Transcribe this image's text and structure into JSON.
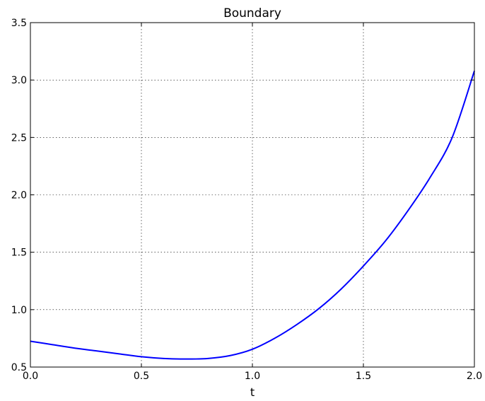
{
  "chart_data": {
    "type": "line",
    "title": "Boundary",
    "xlabel": "t",
    "ylabel": "",
    "xlim": [
      0.0,
      2.0
    ],
    "ylim": [
      0.5,
      3.5
    ],
    "xticks": [
      0.0,
      0.5,
      1.0,
      1.5,
      2.0
    ],
    "xtick_labels": [
      "0.0",
      "0.5",
      "1.0",
      "1.5",
      "2.0"
    ],
    "yticks": [
      0.5,
      1.0,
      1.5,
      2.0,
      2.5,
      3.0,
      3.5
    ],
    "ytick_labels": [
      "0.5",
      "1.0",
      "1.5",
      "2.0",
      "2.5",
      "3.0",
      "3.5"
    ],
    "grid": true,
    "series": [
      {
        "color": "#0000ff",
        "x": [
          0.0,
          0.1,
          0.2,
          0.3,
          0.4,
          0.5,
          0.6,
          0.7,
          0.8,
          0.9,
          1.0,
          1.1,
          1.2,
          1.3,
          1.4,
          1.5,
          1.6,
          1.7,
          1.8,
          1.9,
          2.0
        ],
        "y": [
          0.725,
          0.695,
          0.665,
          0.64,
          0.615,
          0.59,
          0.575,
          0.57,
          0.575,
          0.6,
          0.655,
          0.75,
          0.87,
          1.01,
          1.18,
          1.38,
          1.6,
          1.86,
          2.15,
          2.5,
          3.08
        ]
      }
    ]
  }
}
